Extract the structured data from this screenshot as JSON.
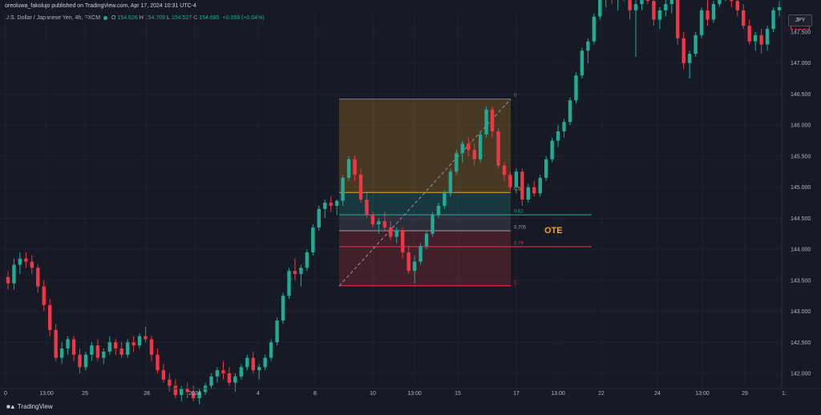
{
  "header": {
    "published_by": "oreoluwa_fakolujo published on TradingView.com, Apr 17, 2024 10:31 UTC-4",
    "symbol": "U.S. Dollar / Japanese Yen, 4h, FXCM",
    "ohlc": {
      "open_label": "O",
      "open": "154.626",
      "high_label": "H",
      "high": "154.709",
      "low_label": "L",
      "low": "154.527",
      "close_label": "C",
      "close": "154.685",
      "change": "+0.059 (+0.04%)"
    }
  },
  "currency_button": "JPY",
  "footer": {
    "brand": "TradingView",
    "logo": "tradingview-logo"
  },
  "annotation": {
    "ote_label": "OTE",
    "ote_color": "#f5a623"
  },
  "colors": {
    "background": "#161a25",
    "up_candle": "#22ab94",
    "down_candle": "#f23645",
    "fib_0_5_line": "#f5a623",
    "fib_0_62_line": "#26a69a",
    "fib_0_79_line": "#f23645",
    "fib_1_line": "#f23645"
  },
  "chart_data": {
    "type": "candlestick",
    "title": "U.S. Dollar / Japanese Yen, 4h, FXCM",
    "ylim": [
      141.85,
      147.95
    ],
    "y_ticks": [
      {
        "value": 147.5,
        "label": "147.500"
      },
      {
        "value": 147.0,
        "label": "147.000"
      },
      {
        "value": 146.5,
        "label": "146.500"
      },
      {
        "value": 146.0,
        "label": "146.000"
      },
      {
        "value": 145.5,
        "label": "145.500"
      },
      {
        "value": 145.0,
        "label": "145.000"
      },
      {
        "value": 144.5,
        "label": "144.500"
      },
      {
        "value": 144.0,
        "label": "144.000"
      },
      {
        "value": 143.5,
        "label": "143.500"
      },
      {
        "value": 143.0,
        "label": "143.000"
      },
      {
        "value": 142.5,
        "label": "142.500"
      },
      {
        "value": 142.0,
        "label": "142.000"
      }
    ],
    "x_ticks": [
      "0",
      "13:00",
      "25",
      "28",
      "2024",
      "4",
      "8",
      "10",
      "13:00",
      "15",
      "17",
      "13:00",
      "22",
      "24",
      "13:00",
      "29",
      "1:"
    ],
    "fibonacci": {
      "high": 146.42,
      "low": 143.41,
      "levels": [
        {
          "ratio": "0",
          "price": 146.42
        },
        {
          "ratio": "0.5",
          "price": 144.915
        },
        {
          "ratio": "0.62",
          "price": 144.554
        },
        {
          "ratio": "0.705",
          "price": 144.298
        },
        {
          "ratio": "0.79",
          "price": 144.042
        },
        {
          "ratio": "1",
          "price": 143.41
        }
      ]
    },
    "candles": [
      [
        143.55,
        143.65,
        143.35,
        143.45
      ],
      [
        143.45,
        143.85,
        143.35,
        143.75
      ],
      [
        143.75,
        143.95,
        143.6,
        143.85
      ],
      [
        143.85,
        143.95,
        143.7,
        143.8
      ],
      [
        143.8,
        143.9,
        143.6,
        143.7
      ],
      [
        143.7,
        143.75,
        143.3,
        143.4
      ],
      [
        143.4,
        143.5,
        143.0,
        143.1
      ],
      [
        143.1,
        143.2,
        142.6,
        142.7
      ],
      [
        142.7,
        142.8,
        142.2,
        142.25
      ],
      [
        142.25,
        142.5,
        142.15,
        142.4
      ],
      [
        142.4,
        142.6,
        142.3,
        142.55
      ],
      [
        142.55,
        142.6,
        142.2,
        142.3
      ],
      [
        142.3,
        142.4,
        142.0,
        142.1
      ],
      [
        142.1,
        142.35,
        142.05,
        142.3
      ],
      [
        142.3,
        142.5,
        142.2,
        142.45
      ],
      [
        142.45,
        142.55,
        142.2,
        142.25
      ],
      [
        142.25,
        142.4,
        142.15,
        142.35
      ],
      [
        142.35,
        142.6,
        142.3,
        142.5
      ],
      [
        142.5,
        142.55,
        142.3,
        142.4
      ],
      [
        142.4,
        142.5,
        142.25,
        142.3
      ],
      [
        142.3,
        142.55,
        142.25,
        142.5
      ],
      [
        142.5,
        142.6,
        142.35,
        142.45
      ],
      [
        142.45,
        142.65,
        142.4,
        142.6
      ],
      [
        142.6,
        142.75,
        142.5,
        142.55
      ],
      [
        142.55,
        142.6,
        142.2,
        142.3
      ],
      [
        142.3,
        142.4,
        142.0,
        142.05
      ],
      [
        142.05,
        142.15,
        141.85,
        141.9
      ],
      [
        141.9,
        142.0,
        141.7,
        141.8
      ],
      [
        141.8,
        141.9,
        141.6,
        141.65
      ],
      [
        141.65,
        141.8,
        141.55,
        141.75
      ],
      [
        141.75,
        141.85,
        141.6,
        141.7
      ],
      [
        141.7,
        141.8,
        141.55,
        141.6
      ],
      [
        141.6,
        141.75,
        141.5,
        141.7
      ],
      [
        141.7,
        141.85,
        141.65,
        141.8
      ],
      [
        141.8,
        142.0,
        141.75,
        141.95
      ],
      [
        141.95,
        142.1,
        141.85,
        142.05
      ],
      [
        142.05,
        142.2,
        141.9,
        142.0
      ],
      [
        142.0,
        142.1,
        141.8,
        141.85
      ],
      [
        141.85,
        142.0,
        141.7,
        141.95
      ],
      [
        141.95,
        142.15,
        141.9,
        142.1
      ],
      [
        142.1,
        142.3,
        142.05,
        142.25
      ],
      [
        142.25,
        142.35,
        142.0,
        142.05
      ],
      [
        142.05,
        142.15,
        141.9,
        142.1
      ],
      [
        142.1,
        142.3,
        142.05,
        142.25
      ],
      [
        142.25,
        142.55,
        142.2,
        142.5
      ],
      [
        142.5,
        142.9,
        142.45,
        142.85
      ],
      [
        142.85,
        143.3,
        142.8,
        143.25
      ],
      [
        143.25,
        143.7,
        143.2,
        143.65
      ],
      [
        143.65,
        143.85,
        143.5,
        143.6
      ],
      [
        143.6,
        143.75,
        143.4,
        143.7
      ],
      [
        143.7,
        144.0,
        143.65,
        143.95
      ],
      [
        143.95,
        144.4,
        143.9,
        144.35
      ],
      [
        144.35,
        144.7,
        144.3,
        144.65
      ],
      [
        144.65,
        144.8,
        144.5,
        144.75
      ],
      [
        144.75,
        144.85,
        144.6,
        144.7
      ],
      [
        144.7,
        144.8,
        144.55,
        144.78
      ],
      [
        144.78,
        145.2,
        144.7,
        145.15
      ],
      [
        145.15,
        145.5,
        145.1,
        145.45
      ],
      [
        145.45,
        145.5,
        145.1,
        145.2
      ],
      [
        145.2,
        145.3,
        144.75,
        144.8
      ],
      [
        144.8,
        144.9,
        144.5,
        144.55
      ],
      [
        144.55,
        144.6,
        144.35,
        144.4
      ],
      [
        144.4,
        144.5,
        144.25,
        144.45
      ],
      [
        144.45,
        144.6,
        144.3,
        144.35
      ],
      [
        144.35,
        144.45,
        144.15,
        144.2
      ],
      [
        144.2,
        144.35,
        144.1,
        144.3
      ],
      [
        144.3,
        144.35,
        143.85,
        143.95
      ],
      [
        143.95,
        144.05,
        143.6,
        143.65
      ],
      [
        143.65,
        143.9,
        143.45,
        143.8
      ],
      [
        143.8,
        144.1,
        143.75,
        144.05
      ],
      [
        144.05,
        144.3,
        144.0,
        144.25
      ],
      [
        144.25,
        144.6,
        144.2,
        144.55
      ],
      [
        144.55,
        144.75,
        144.5,
        144.7
      ],
      [
        144.7,
        144.95,
        144.65,
        144.9
      ],
      [
        144.9,
        145.3,
        144.85,
        145.25
      ],
      [
        145.25,
        145.6,
        145.2,
        145.55
      ],
      [
        145.55,
        145.75,
        145.4,
        145.7
      ],
      [
        145.7,
        145.8,
        145.5,
        145.6
      ],
      [
        145.6,
        145.7,
        145.35,
        145.45
      ],
      [
        145.45,
        145.9,
        145.4,
        145.85
      ],
      [
        145.85,
        146.3,
        145.8,
        146.25
      ],
      [
        146.25,
        146.3,
        145.8,
        145.9
      ],
      [
        145.9,
        145.95,
        145.3,
        145.35
      ],
      [
        145.35,
        145.4,
        145.1,
        145.2
      ],
      [
        145.2,
        145.25,
        144.95,
        145.0
      ],
      [
        145.0,
        145.3,
        144.9,
        145.25
      ],
      [
        145.25,
        145.3,
        144.7,
        144.8
      ],
      [
        144.8,
        145.05,
        144.75,
        145.0
      ],
      [
        145.0,
        145.1,
        144.85,
        144.9
      ],
      [
        144.9,
        145.2,
        144.85,
        145.15
      ],
      [
        145.15,
        145.5,
        145.1,
        145.45
      ],
      [
        145.45,
        145.8,
        145.4,
        145.75
      ],
      [
        145.75,
        146.0,
        145.65,
        145.9
      ],
      [
        145.9,
        146.1,
        145.8,
        146.05
      ],
      [
        146.05,
        146.45,
        146.0,
        146.4
      ],
      [
        146.4,
        146.85,
        146.35,
        146.8
      ],
      [
        146.8,
        147.25,
        146.75,
        147.2
      ],
      [
        147.2,
        147.4,
        147.0,
        147.35
      ],
      [
        147.35,
        147.8,
        147.3,
        147.75
      ],
      [
        147.75,
        148.1,
        147.7,
        148.05
      ],
      [
        148.05,
        148.3,
        147.9,
        148.2
      ],
      [
        148.2,
        148.3,
        147.95,
        148.05
      ],
      [
        148.05,
        148.2,
        147.85,
        148.1
      ],
      [
        148.1,
        148.35,
        148.0,
        148.25
      ],
      [
        148.25,
        148.3,
        147.7,
        147.85
      ],
      [
        147.85,
        148.1,
        147.1,
        147.95
      ],
      [
        147.95,
        148.2,
        147.85,
        148.15
      ],
      [
        148.15,
        148.25,
        147.95,
        148.0
      ],
      [
        148.0,
        148.15,
        147.6,
        147.7
      ],
      [
        147.7,
        147.9,
        147.55,
        147.85
      ],
      [
        147.85,
        148.05,
        147.75,
        147.95
      ],
      [
        147.95,
        148.1,
        147.8,
        148.05
      ],
      [
        148.05,
        148.2,
        147.3,
        147.4
      ],
      [
        147.4,
        147.5,
        146.9,
        147.0
      ],
      [
        147.0,
        147.2,
        146.75,
        147.15
      ],
      [
        147.15,
        147.5,
        147.1,
        147.45
      ],
      [
        147.45,
        147.9,
        147.4,
        147.85
      ],
      [
        147.85,
        148.1,
        147.6,
        147.7
      ],
      [
        147.7,
        148.0,
        147.65,
        147.95
      ],
      [
        147.95,
        148.2,
        147.9,
        148.1
      ],
      [
        148.1,
        148.25,
        148.0,
        148.15
      ],
      [
        148.15,
        148.3,
        147.9,
        148.0
      ],
      [
        148.0,
        148.1,
        147.75,
        147.85
      ],
      [
        147.85,
        147.95,
        147.55,
        147.6
      ],
      [
        147.6,
        147.7,
        147.3,
        147.35
      ],
      [
        147.35,
        147.5,
        147.2,
        147.45
      ],
      [
        147.45,
        147.55,
        147.15,
        147.3
      ],
      [
        147.3,
        147.6,
        147.2,
        147.55
      ],
      [
        147.55,
        147.9,
        147.5,
        147.85
      ],
      [
        147.85,
        148.0,
        147.75,
        147.9
      ]
    ]
  }
}
